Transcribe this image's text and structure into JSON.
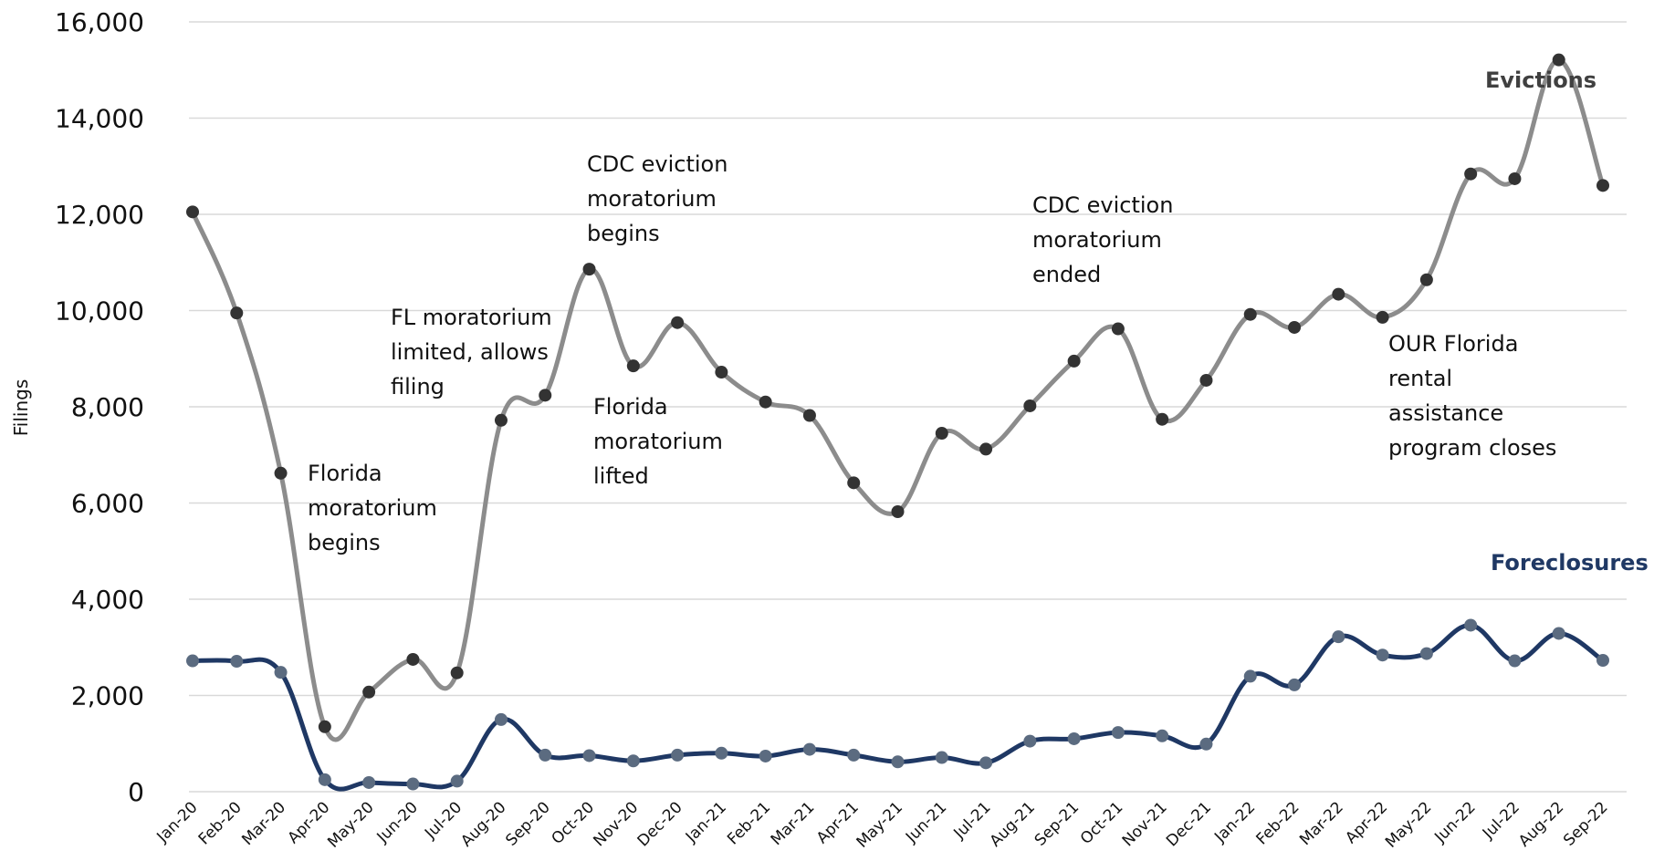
{
  "chart_data": {
    "type": "line",
    "ylabel": "Filings",
    "ylim": [
      0,
      16000
    ],
    "yticks": [
      "0",
      "2,000",
      "4,000",
      "6,000",
      "8,000",
      "10,000",
      "12,000",
      "14,000",
      "16,000"
    ],
    "ytick_values": [
      0,
      2000,
      4000,
      6000,
      8000,
      10000,
      12000,
      14000,
      16000
    ],
    "grid": true,
    "categories": [
      "Jan-20",
      "Feb-20",
      "Mar-20",
      "Apr-20",
      "May-20",
      "Jun-20",
      "Jul-20",
      "Aug-20",
      "Sep-20",
      "Oct-20",
      "Nov-20",
      "Dec-20",
      "Jan-21",
      "Feb-21",
      "Mar-21",
      "Apr-21",
      "May-21",
      "Jun-21",
      "Jul-21",
      "Aug-21",
      "Sep-21",
      "Oct-21",
      "Nov-21",
      "Dec-21",
      "Jan-22",
      "Feb-22",
      "Mar-22",
      "Apr-22",
      "May-22",
      "Jun-22",
      "Jul-22",
      "Aug-22",
      "Sep-22"
    ],
    "series": [
      {
        "name": "Evictions",
        "color": "#8c8c8c",
        "marker_color": "#333333",
        "values": [
          12050,
          9950,
          6620,
          1350,
          2070,
          2750,
          2470,
          7720,
          8240,
          10860,
          8850,
          9750,
          8720,
          8100,
          7820,
          6420,
          5820,
          7450,
          7120,
          8020,
          8950,
          9620,
          7740,
          8550,
          9920,
          9650,
          10340,
          9860,
          10640,
          12840,
          12740,
          15210,
          12600
        ]
      },
      {
        "name": "Foreclosures",
        "color": "#1f3864",
        "marker_color": "#5b6b80",
        "values": [
          2720,
          2710,
          2480,
          250,
          190,
          160,
          220,
          1500,
          760,
          750,
          640,
          760,
          800,
          740,
          880,
          760,
          620,
          710,
          600,
          1050,
          1100,
          1230,
          1160,
          990,
          2400,
          2220,
          3220,
          2840,
          2870,
          3460,
          2720,
          3290,
          2730
        ]
      }
    ],
    "series_labels": [
      {
        "text": "Evictions",
        "color": "#404040"
      },
      {
        "text": "Foreclosures",
        "color": "#1f3864"
      }
    ],
    "annotations": [
      {
        "lines": [
          "Florida",
          "moratorium",
          "begins"
        ]
      },
      {
        "lines": [
          "FL moratorium",
          "limited, allows",
          "filing"
        ]
      },
      {
        "lines": [
          "CDC eviction",
          "moratorium",
          "begins"
        ]
      },
      {
        "lines": [
          "Florida",
          "moratorium",
          "lifted"
        ]
      },
      {
        "lines": [
          "CDC eviction",
          "moratorium",
          "ended"
        ]
      },
      {
        "lines": [
          "OUR Florida",
          "rental",
          "assistance",
          "program closes"
        ]
      }
    ]
  }
}
